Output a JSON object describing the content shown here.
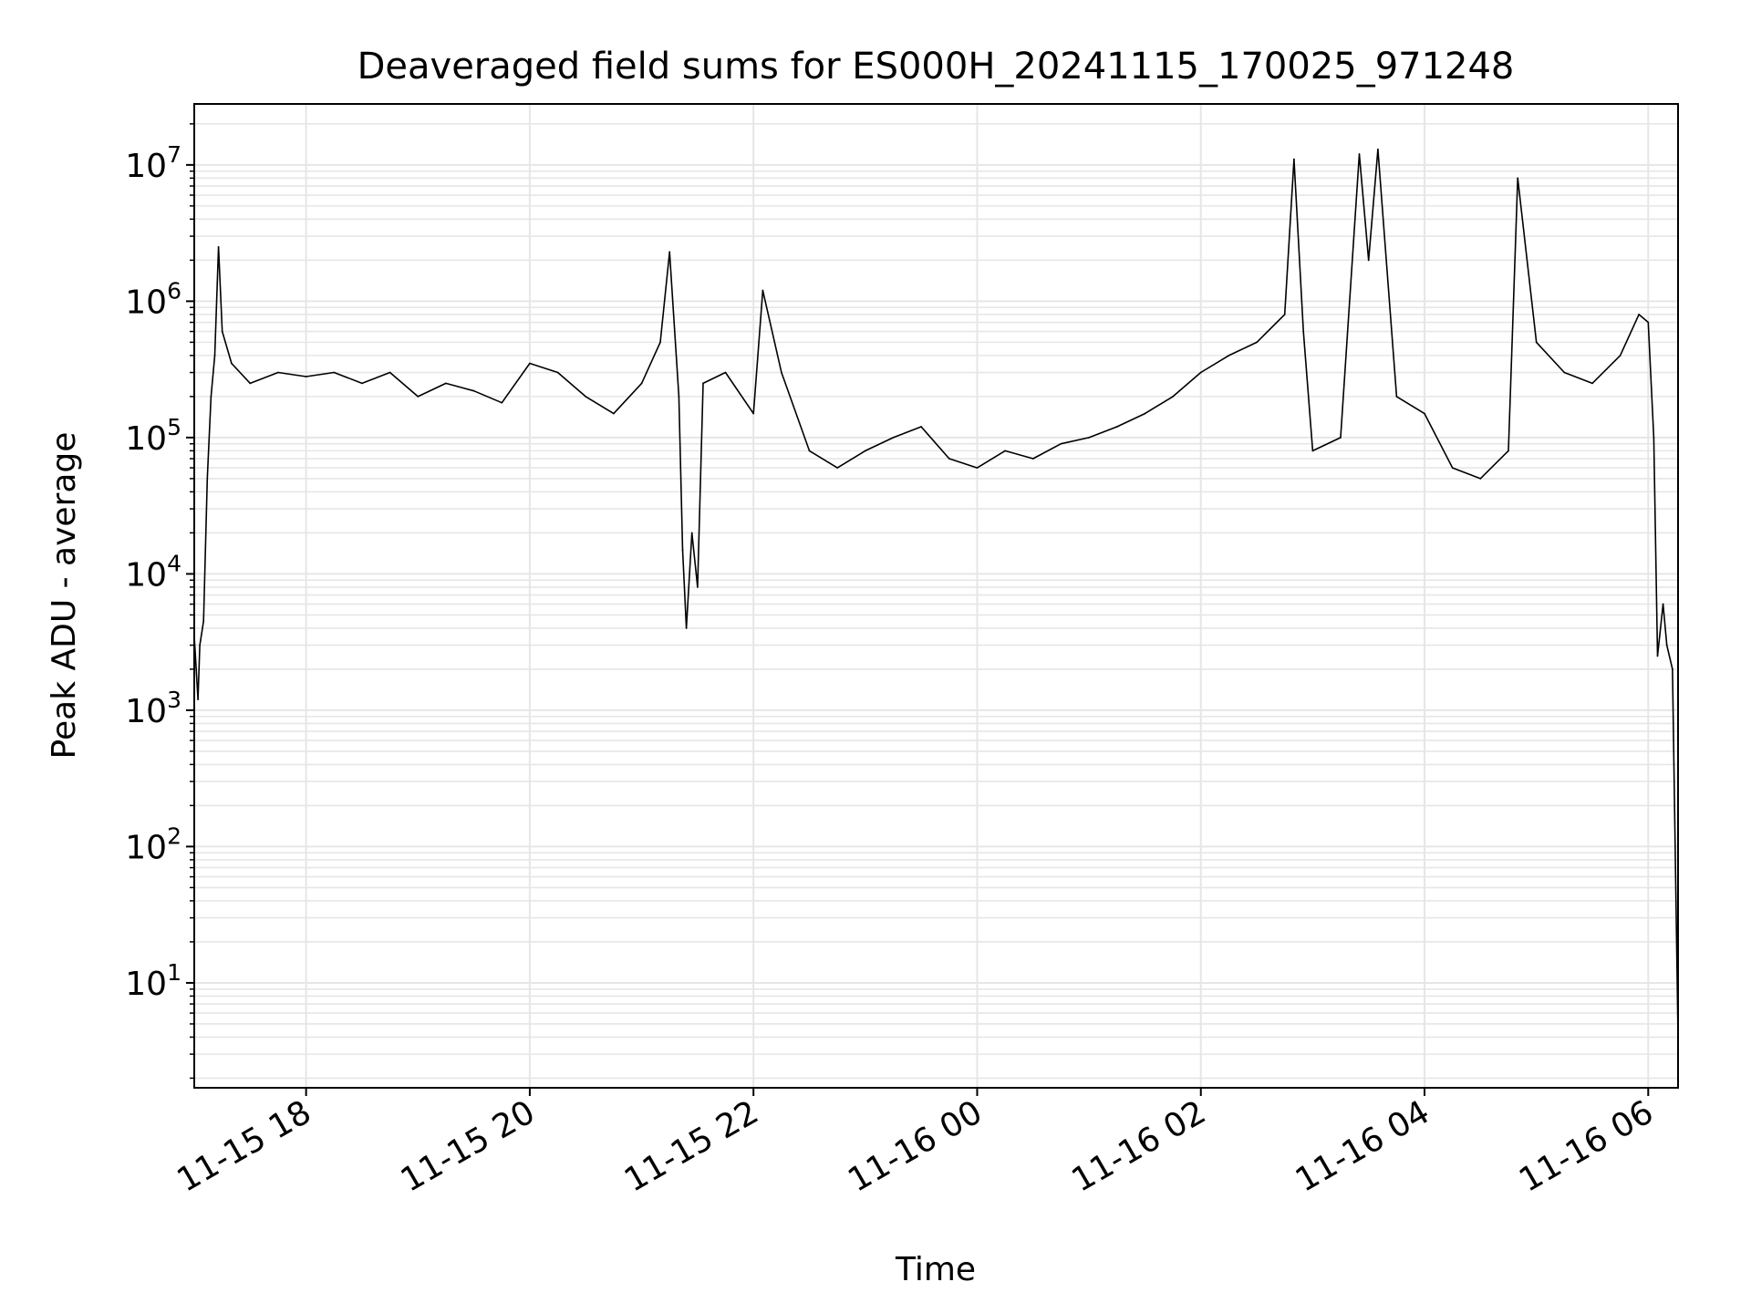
{
  "chart_data": {
    "type": "line",
    "title": "Deaveraged field sums for ES000H_20241115_170025_971248",
    "xlabel": "Time",
    "ylabel": "Peak ADU - average",
    "y_scale": "log",
    "ylim": [
      1.7,
      28000000
    ],
    "xlim": [
      "2024-11-15 17:00",
      "2024-11-16 06:16"
    ],
    "grid": true,
    "line_color": "#000000",
    "grid_color": "#e6e6e6",
    "x_ticks": [
      "11-15 18",
      "11-15 20",
      "11-15 22",
      "11-16 00",
      "11-16 02",
      "11-16 04",
      "11-16 06"
    ],
    "y_ticks": [
      {
        "base": "10",
        "exp": "1"
      },
      {
        "base": "10",
        "exp": "2"
      },
      {
        "base": "10",
        "exp": "3"
      },
      {
        "base": "10",
        "exp": "4"
      },
      {
        "base": "10",
        "exp": "5"
      },
      {
        "base": "10",
        "exp": "6"
      },
      {
        "base": "10",
        "exp": "7"
      }
    ],
    "series": [
      {
        "points": [
          [
            "2024-11-15 17:00",
            3500
          ],
          [
            "2024-11-15 17:02",
            1200
          ],
          [
            "2024-11-15 17:03",
            3000
          ],
          [
            "2024-11-15 17:05",
            4500
          ],
          [
            "2024-11-15 17:07",
            50000
          ],
          [
            "2024-11-15 17:09",
            200000
          ],
          [
            "2024-11-15 17:11",
            400000
          ],
          [
            "2024-11-15 17:13",
            2500000
          ],
          [
            "2024-11-15 17:15",
            600000
          ],
          [
            "2024-11-15 17:20",
            350000
          ],
          [
            "2024-11-15 17:30",
            250000
          ],
          [
            "2024-11-15 17:45",
            300000
          ],
          [
            "2024-11-15 18:00",
            280000
          ],
          [
            "2024-11-15 18:15",
            300000
          ],
          [
            "2024-11-15 18:30",
            250000
          ],
          [
            "2024-11-15 18:45",
            300000
          ],
          [
            "2024-11-15 19:00",
            200000
          ],
          [
            "2024-11-15 19:15",
            250000
          ],
          [
            "2024-11-15 19:30",
            220000
          ],
          [
            "2024-11-15 19:45",
            180000
          ],
          [
            "2024-11-15 20:00",
            350000
          ],
          [
            "2024-11-15 20:15",
            300000
          ],
          [
            "2024-11-15 20:30",
            200000
          ],
          [
            "2024-11-15 20:45",
            150000
          ],
          [
            "2024-11-15 21:00",
            250000
          ],
          [
            "2024-11-15 21:10",
            500000
          ],
          [
            "2024-11-15 21:15",
            2300000
          ],
          [
            "2024-11-15 21:20",
            200000
          ],
          [
            "2024-11-15 21:22",
            15000
          ],
          [
            "2024-11-15 21:24",
            4000
          ],
          [
            "2024-11-15 21:27",
            20000
          ],
          [
            "2024-11-15 21:30",
            8000
          ],
          [
            "2024-11-15 21:33",
            250000
          ],
          [
            "2024-11-15 21:45",
            300000
          ],
          [
            "2024-11-15 22:00",
            150000
          ],
          [
            "2024-11-15 22:05",
            1200000
          ],
          [
            "2024-11-15 22:15",
            300000
          ],
          [
            "2024-11-15 22:30",
            80000
          ],
          [
            "2024-11-15 22:45",
            60000
          ],
          [
            "2024-11-15 23:00",
            80000
          ],
          [
            "2024-11-15 23:15",
            100000
          ],
          [
            "2024-11-15 23:30",
            120000
          ],
          [
            "2024-11-15 23:45",
            70000
          ],
          [
            "2024-11-16 00:00",
            60000
          ],
          [
            "2024-11-16 00:15",
            80000
          ],
          [
            "2024-11-16 00:30",
            70000
          ],
          [
            "2024-11-16 00:45",
            90000
          ],
          [
            "2024-11-16 01:00",
            100000
          ],
          [
            "2024-11-16 01:15",
            120000
          ],
          [
            "2024-11-16 01:30",
            150000
          ],
          [
            "2024-11-16 01:45",
            200000
          ],
          [
            "2024-11-16 02:00",
            300000
          ],
          [
            "2024-11-16 02:15",
            400000
          ],
          [
            "2024-11-16 02:30",
            500000
          ],
          [
            "2024-11-16 02:45",
            800000
          ],
          [
            "2024-11-16 02:50",
            11000000
          ],
          [
            "2024-11-16 02:55",
            600000
          ],
          [
            "2024-11-16 03:00",
            80000
          ],
          [
            "2024-11-16 03:15",
            100000
          ],
          [
            "2024-11-16 03:25",
            12000000
          ],
          [
            "2024-11-16 03:30",
            2000000
          ],
          [
            "2024-11-16 03:35",
            13000000
          ],
          [
            "2024-11-16 03:45",
            200000
          ],
          [
            "2024-11-16 04:00",
            150000
          ],
          [
            "2024-11-16 04:15",
            60000
          ],
          [
            "2024-11-16 04:30",
            50000
          ],
          [
            "2024-11-16 04:45",
            80000
          ],
          [
            "2024-11-16 04:50",
            8000000
          ],
          [
            "2024-11-16 05:00",
            500000
          ],
          [
            "2024-11-16 05:15",
            300000
          ],
          [
            "2024-11-16 05:30",
            250000
          ],
          [
            "2024-11-16 05:45",
            400000
          ],
          [
            "2024-11-16 05:55",
            800000
          ],
          [
            "2024-11-16 06:00",
            700000
          ],
          [
            "2024-11-16 06:03",
            100000
          ],
          [
            "2024-11-16 06:05",
            2500
          ],
          [
            "2024-11-16 06:08",
            6000
          ],
          [
            "2024-11-16 06:10",
            3000
          ],
          [
            "2024-11-16 06:13",
            2000
          ],
          [
            "2024-11-16 06:16",
            4
          ]
        ]
      }
    ]
  }
}
